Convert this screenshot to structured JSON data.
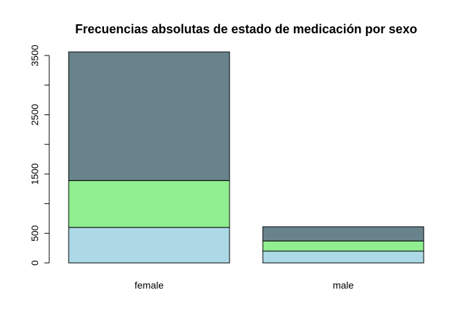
{
  "chart_data": {
    "type": "bar",
    "stacked": true,
    "title": "Frecuencias absolutas de estado de medicación por sexo",
    "xlabel": "",
    "ylabel": "",
    "categories": [
      "female",
      "male"
    ],
    "ylim": [
      0,
      3500
    ],
    "y_ticks": [
      0,
      500,
      1000,
      1500,
      2000,
      2500,
      3000,
      3500
    ],
    "y_tick_labels_shown": [
      "0",
      "500",
      "1500",
      "2500",
      "3500"
    ],
    "grid": false,
    "legend": "none",
    "series": [
      {
        "color": "#add8e6",
        "values": [
          600,
          200
        ]
      },
      {
        "color": "#90ee90",
        "values": [
          790,
          170
        ]
      },
      {
        "color": "#68838b",
        "values": [
          2170,
          240
        ]
      }
    ]
  }
}
